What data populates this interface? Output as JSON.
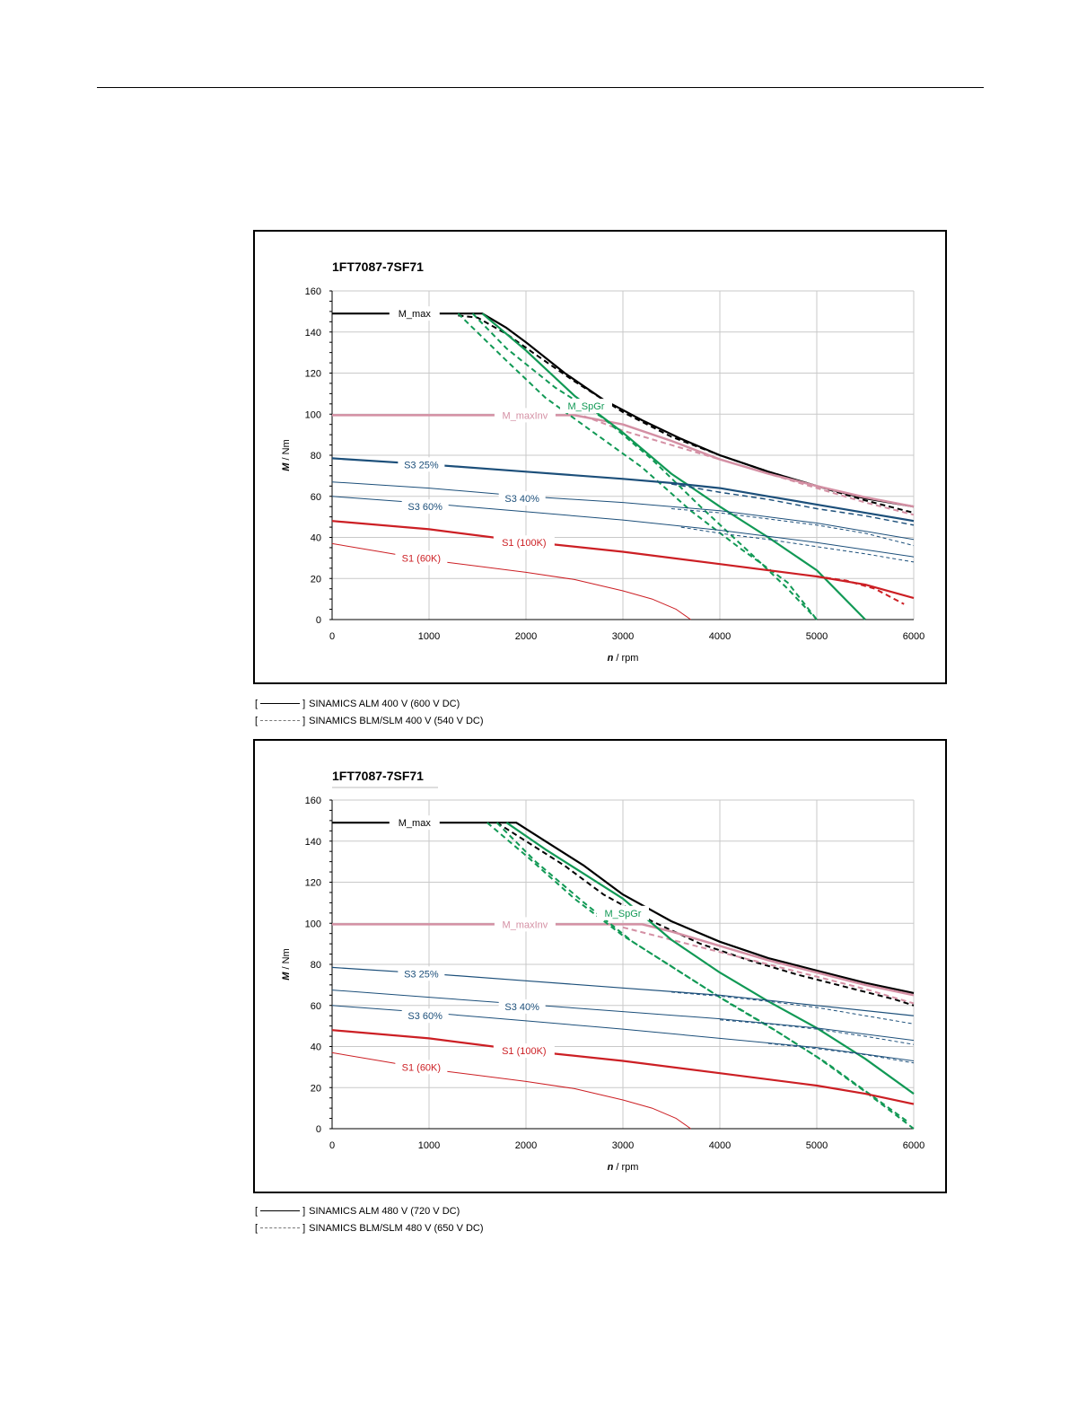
{
  "charts": [
    {
      "title": "1FT7087-7SF71",
      "legend": [
        {
          "style": "solid",
          "text": "SINAMICS ALM 400 V (600 V DC)"
        },
        {
          "style": "dashed",
          "text": "SINAMICS BLM/SLM 400 V (540 V DC)"
        }
      ]
    },
    {
      "title": "1FT7087-7SF71",
      "legend": [
        {
          "style": "solid",
          "text": "SINAMICS ALM 480 V (720 V DC)"
        },
        {
          "style": "dashed",
          "text": "SINAMICS BLM/SLM 480 V (650 V DC)"
        }
      ]
    }
  ],
  "chart_data": [
    {
      "type": "line",
      "title": "1FT7087-7SF71",
      "xlabel": "n / rpm",
      "ylabel": "M / Nm",
      "xlim": [
        0,
        6000
      ],
      "ylim": [
        0,
        160
      ],
      "xticks": [
        0,
        1000,
        2000,
        3000,
        4000,
        5000,
        6000
      ],
      "yticks": [
        0,
        20,
        40,
        60,
        80,
        100,
        120,
        140,
        160
      ],
      "grid": true,
      "colors": {
        "M_max": "#000000",
        "M_SpGr": "#119955",
        "M_maxInv": "#d490a4",
        "S3": "#1c4f7a",
        "S1": "#cc1f24"
      },
      "series": [
        {
          "name": "M_max",
          "color": "#000000",
          "style": "solid",
          "width": 2.2,
          "x": [
            0,
            1550,
            1800,
            2000,
            2400,
            2800,
            3200,
            3600,
            4000,
            4500,
            5000,
            5500,
            6000
          ],
          "y": [
            149,
            149,
            142,
            135,
            120,
            107,
            97,
            88,
            80,
            72,
            65,
            59,
            55
          ]
        },
        {
          "name": "",
          "color": "#000000",
          "style": "dashed",
          "width": 2,
          "x": [
            1300,
            1500,
            1800,
            2100,
            2500,
            3000,
            3500,
            4000,
            4500,
            5000,
            5500,
            6000
          ],
          "y": [
            148,
            147,
            139,
            129,
            116,
            101,
            89,
            80,
            72,
            65,
            58,
            52
          ]
        },
        {
          "name": "M_maxInv",
          "color": "#d490a4",
          "style": "solid",
          "width": 2.5,
          "x": [
            0,
            2500,
            3000,
            3500,
            4000,
            4500,
            5000,
            5500,
            6000
          ],
          "y": [
            99.5,
            99.5,
            95,
            87,
            78,
            71,
            65,
            59.5,
            55
          ]
        },
        {
          "name": "",
          "color": "#d490a4",
          "style": "dashed",
          "width": 2,
          "x": [
            2600,
            3000,
            3500,
            4000,
            4500,
            5000,
            5500,
            6000
          ],
          "y": [
            99,
            92,
            85,
            78,
            71,
            64,
            57,
            51
          ]
        },
        {
          "name": "M_SpGr",
          "color": "#119955",
          "style": "solid",
          "width": 2.2,
          "x": [
            1550,
            2000,
            2500,
            3000,
            3500,
            4000,
            4500,
            5000,
            5500
          ],
          "y": [
            149,
            131,
            109,
            91,
            71,
            55,
            40,
            24,
            0
          ]
        },
        {
          "name": "",
          "color": "#119955",
          "style": "dashed",
          "width": 2,
          "x": [
            1300,
            1800,
            2200,
            2700,
            3200,
            3700,
            4200,
            4700,
            5000
          ],
          "y": [
            149,
            126,
            108,
            91,
            74,
            53,
            35,
            18,
            0
          ]
        },
        {
          "name": "",
          "color": "#119955",
          "style": "dashed",
          "width": 2,
          "x": [
            1450,
            1800,
            2300,
            2800,
            3300,
            3800,
            4300,
            4700,
            5000
          ],
          "y": [
            149,
            132,
            113,
            98,
            78,
            55,
            33,
            15,
            0
          ]
        },
        {
          "name": "S3 25%",
          "color": "#1c4f7a",
          "style": "solid",
          "width": 2.2,
          "x": [
            0,
            1000,
            2000,
            3000,
            3500,
            4000,
            4500,
            5000,
            5500,
            6000
          ],
          "y": [
            78.5,
            75.5,
            72,
            68.5,
            66.5,
            64,
            60,
            56,
            52,
            48
          ]
        },
        {
          "name": "",
          "color": "#1c4f7a",
          "style": "dashed",
          "width": 1.5,
          "x": [
            3500,
            4000,
            4500,
            5000,
            5500,
            6000
          ],
          "y": [
            66,
            62,
            58.5,
            54,
            50.5,
            46
          ]
        },
        {
          "name": "S3 40%",
          "color": "#1c4f7a",
          "style": "solid",
          "width": 1,
          "x": [
            0,
            1000,
            2000,
            3000,
            4000,
            5000,
            6000
          ],
          "y": [
            67,
            64,
            60,
            57,
            53,
            47,
            39
          ]
        },
        {
          "name": "",
          "color": "#1c4f7a",
          "style": "dashed",
          "width": 1,
          "x": [
            3500,
            4000,
            4500,
            5000,
            5500,
            6000
          ],
          "y": [
            54,
            52,
            49,
            46,
            42,
            36
          ]
        },
        {
          "name": "S3 60%",
          "color": "#1c4f7a",
          "style": "solid",
          "width": 1,
          "x": [
            0,
            1000,
            2000,
            3000,
            4000,
            5000,
            6000
          ],
          "y": [
            60,
            56.5,
            52.5,
            48.5,
            43.5,
            37.5,
            30.5
          ]
        },
        {
          "name": "",
          "color": "#1c4f7a",
          "style": "dashed",
          "width": 1,
          "x": [
            3600,
            4000,
            4500,
            5000,
            5500,
            6000
          ],
          "y": [
            45,
            42,
            39,
            35.5,
            32,
            28
          ]
        },
        {
          "name": "S1 (100K)",
          "color": "#cc1f24",
          "style": "solid",
          "width": 2.2,
          "x": [
            0,
            1000,
            2000,
            3000,
            4000,
            5000,
            5500,
            6000
          ],
          "y": [
            48,
            44,
            38,
            33,
            27,
            21,
            17,
            10.5
          ]
        },
        {
          "name": "",
          "color": "#cc1f24",
          "style": "dashed",
          "width": 2,
          "x": [
            5000,
            5300,
            5600,
            5900
          ],
          "y": [
            21,
            19,
            15,
            7.5
          ]
        },
        {
          "name": "S1 (60K)",
          "color": "#cc1f24",
          "style": "solid",
          "width": 1,
          "x": [
            0,
            500,
            1000,
            1500,
            2000,
            2500,
            3000,
            3300,
            3550,
            3700
          ],
          "y": [
            37,
            33,
            29,
            26,
            23,
            19.5,
            14,
            10,
            5,
            0
          ]
        }
      ]
    },
    {
      "type": "line",
      "title": "1FT7087-7SF71",
      "xlabel": "n / rpm",
      "ylabel": "M / Nm",
      "xlim": [
        0,
        6000
      ],
      "ylim": [
        0,
        160
      ],
      "xticks": [
        0,
        1000,
        2000,
        3000,
        4000,
        5000,
        6000
      ],
      "yticks": [
        0,
        20,
        40,
        60,
        80,
        100,
        120,
        140,
        160
      ],
      "grid": true,
      "colors": {
        "M_max": "#000000",
        "M_SpGr": "#119955",
        "M_maxInv": "#d490a4",
        "S3": "#1c4f7a",
        "S1": "#cc1f24"
      },
      "series": [
        {
          "name": "M_max",
          "color": "#000000",
          "style": "solid",
          "width": 2.2,
          "x": [
            0,
            1900,
            2200,
            2600,
            3000,
            3500,
            4000,
            4500,
            5000,
            5500,
            6000
          ],
          "y": [
            149,
            149,
            140,
            128,
            114,
            101,
            91,
            83,
            77,
            71,
            66
          ]
        },
        {
          "name": "",
          "color": "#000000",
          "style": "dashed",
          "width": 2,
          "x": [
            1700,
            2000,
            2400,
            2800,
            3300,
            3800,
            4300,
            4800,
            5300,
            5800,
            6000
          ],
          "y": [
            149,
            140,
            128,
            114,
            101,
            90,
            82,
            75,
            69,
            63,
            60
          ]
        },
        {
          "name": "M_maxInv",
          "color": "#d490a4",
          "style": "solid",
          "width": 2.5,
          "x": [
            0,
            3200,
            3500,
            4000,
            4500,
            5000,
            5500,
            6000
          ],
          "y": [
            99.5,
            99.5,
            96,
            89,
            82,
            76,
            70,
            65
          ]
        },
        {
          "name": "",
          "color": "#d490a4",
          "style": "dashed",
          "width": 2,
          "x": [
            3000,
            3500,
            4000,
            4500,
            5000,
            5500,
            6000
          ],
          "y": [
            98,
            92,
            86,
            80,
            74,
            68,
            61
          ]
        },
        {
          "name": "M_SpGr",
          "color": "#119955",
          "style": "solid",
          "width": 2.2,
          "x": [
            1800,
            2200,
            2600,
            3000,
            3500,
            4000,
            4500,
            5000,
            5500,
            6000
          ],
          "y": [
            149,
            136,
            124,
            112,
            92,
            76,
            62,
            49,
            34,
            17
          ]
        },
        {
          "name": "",
          "color": "#119955",
          "style": "dashed",
          "width": 2,
          "x": [
            1600,
            2000,
            2500,
            3000,
            3500,
            4000,
            4500,
            5000,
            5500,
            6000
          ],
          "y": [
            149,
            133,
            112,
            94,
            79,
            64,
            50,
            35,
            18,
            0
          ]
        },
        {
          "name": "",
          "color": "#119955",
          "style": "dashed",
          "width": 2,
          "x": [
            1700,
            2100,
            2600,
            3100,
            3600,
            4100,
            4600,
            5100,
            5600,
            5950
          ],
          "y": [
            149,
            130,
            110,
            91,
            76,
            61,
            47,
            32,
            15,
            3
          ]
        },
        {
          "name": "S3 25%",
          "color": "#1c4f7a",
          "style": "solid",
          "width": 1.2,
          "x": [
            0,
            1000,
            2000,
            3000,
            4000,
            5000,
            6000
          ],
          "y": [
            78.5,
            75.5,
            72,
            68.5,
            65,
            60,
            55
          ]
        },
        {
          "name": "",
          "color": "#1c4f7a",
          "style": "dashed",
          "width": 1,
          "x": [
            3500,
            4000,
            4500,
            5000,
            5500,
            6000
          ],
          "y": [
            66.5,
            64.5,
            62,
            59,
            55,
            51
          ]
        },
        {
          "name": "S3 40%",
          "color": "#1c4f7a",
          "style": "solid",
          "width": 1,
          "x": [
            0,
            1000,
            2000,
            3000,
            4000,
            5000,
            6000
          ],
          "y": [
            67.5,
            64,
            60.5,
            57,
            53.5,
            49,
            43
          ]
        },
        {
          "name": "",
          "color": "#1c4f7a",
          "style": "dashed",
          "width": 1,
          "x": [
            4000,
            4500,
            5000,
            5500,
            6000
          ],
          "y": [
            53,
            51,
            48.5,
            45,
            41
          ]
        },
        {
          "name": "S3 60%",
          "color": "#1c4f7a",
          "style": "solid",
          "width": 1,
          "x": [
            0,
            1000,
            2000,
            3000,
            4000,
            5000,
            6000
          ],
          "y": [
            60,
            56.5,
            52.5,
            48.5,
            44,
            39.5,
            33
          ]
        },
        {
          "name": "",
          "color": "#1c4f7a",
          "style": "dashed",
          "width": 1,
          "x": [
            4500,
            5000,
            5500,
            6000
          ],
          "y": [
            41.5,
            39,
            36,
            32
          ]
        },
        {
          "name": "S1 (100K)",
          "color": "#cc1f24",
          "style": "solid",
          "width": 2.2,
          "x": [
            0,
            1000,
            2000,
            3000,
            4000,
            5000,
            5500,
            6000
          ],
          "y": [
            48,
            44,
            38,
            33,
            27,
            21,
            17,
            12
          ]
        },
        {
          "name": "S1 (60K)",
          "color": "#cc1f24",
          "style": "solid",
          "width": 1,
          "x": [
            0,
            500,
            1000,
            1500,
            2000,
            2500,
            3000,
            3300,
            3550,
            3700
          ],
          "y": [
            37,
            33,
            29,
            26,
            23,
            19.5,
            14,
            10,
            5,
            0
          ]
        }
      ],
      "labels": [
        {
          "text": "M_max",
          "color": "#000000"
        },
        {
          "text": "M_SpGr",
          "color": "#119955"
        },
        {
          "text": "M_maxInv",
          "color": "#d490a4"
        },
        {
          "text": "S3 25%",
          "color": "#1c4f7a"
        },
        {
          "text": "S3 40%",
          "color": "#1c4f7a"
        },
        {
          "text": "S3 60%",
          "color": "#1c4f7a"
        },
        {
          "text": "S1 (100K)",
          "color": "#cc1f24"
        },
        {
          "text": "S1 (60K)",
          "color": "#cc1f24"
        }
      ]
    }
  ]
}
